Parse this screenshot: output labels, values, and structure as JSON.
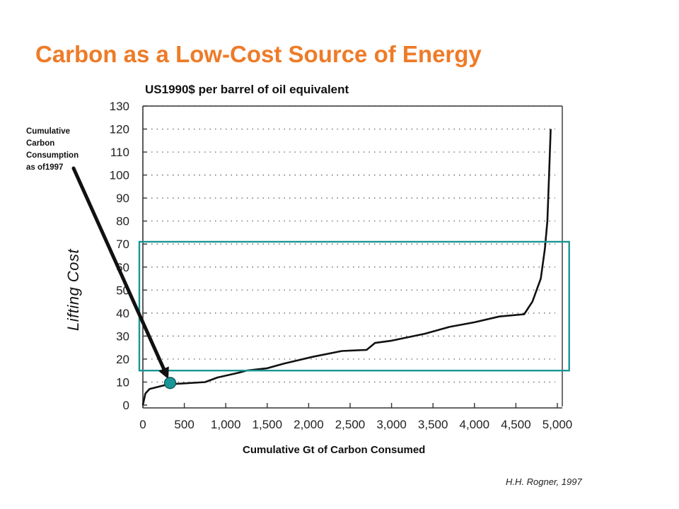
{
  "slide": {
    "title": "Carbon as a Low-Cost Source of Energy",
    "subtitle": "US1990$ per barrel of oil equivalent",
    "annotation": "Cumulative Carbon Consumption as of1997",
    "ylabel": "Lifting Cost",
    "xlabel": "Cumulative Gt of Carbon Consumed",
    "credit": "H.H. Rogner, 1997",
    "colors": {
      "title": "#ee7b28",
      "highlight_box": "#1a9696",
      "arrow": "#111111",
      "marker": "#1a9696"
    }
  },
  "chart_data": {
    "type": "line",
    "title": "US1990$ per barrel of oil equivalent",
    "xlabel": "Cumulative Gt of Carbon Consumed",
    "ylabel": "Lifting Cost",
    "xlim": [
      0,
      5000
    ],
    "ylim": [
      0,
      130
    ],
    "x_ticks": [
      "0",
      "500",
      "1,000",
      "1,500",
      "2,000",
      "2,500",
      "3,000",
      "3,500",
      "4,000",
      "4,500",
      "5,000"
    ],
    "y_ticks": [
      "0",
      "10",
      "20",
      "30",
      "40",
      "50",
      "60",
      "70",
      "80",
      "90",
      "100",
      "110",
      "120",
      "130"
    ],
    "grid": "dotted horizontal",
    "series": [
      {
        "points": [
          [
            0,
            0
          ],
          [
            30,
            5
          ],
          [
            80,
            7
          ],
          [
            300,
            9
          ],
          [
            750,
            10
          ],
          [
            900,
            12
          ],
          [
            1150,
            14
          ],
          [
            1250,
            15
          ],
          [
            1500,
            16
          ],
          [
            1700,
            18
          ],
          [
            2050,
            21
          ],
          [
            2400,
            23.5
          ],
          [
            2700,
            24
          ],
          [
            2800,
            27
          ],
          [
            3000,
            28
          ],
          [
            3400,
            31
          ],
          [
            3700,
            34
          ],
          [
            4000,
            36
          ],
          [
            4300,
            38.5
          ],
          [
            4600,
            39.5
          ],
          [
            4700,
            45
          ],
          [
            4800,
            55
          ],
          [
            4850,
            68
          ],
          [
            4880,
            80
          ],
          [
            4900,
            100
          ],
          [
            4920,
            120
          ]
        ]
      }
    ],
    "highlight_box": {
      "x": [
        0,
        5100
      ],
      "y": [
        15,
        71
      ]
    },
    "marker": {
      "x": 320,
      "y": 9,
      "label": "Cumulative Carbon Consumption as of1997"
    }
  }
}
